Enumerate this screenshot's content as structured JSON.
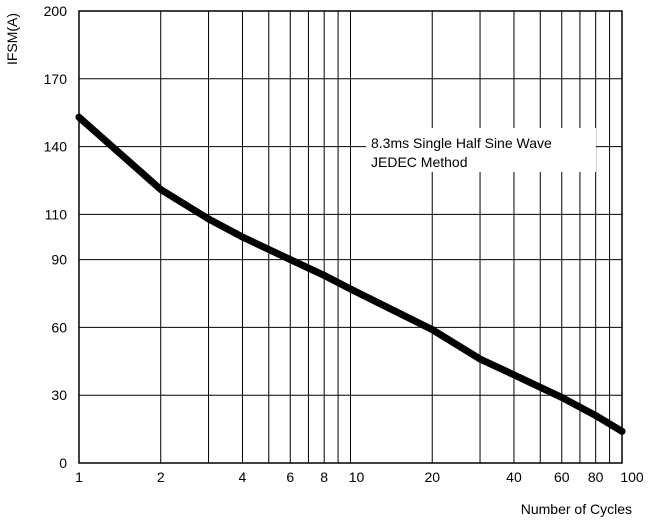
{
  "chart_data": {
    "type": "line",
    "xscale": "log",
    "ylabel": "IFSM(A)",
    "xlabel": "Number of Cycles",
    "xlim": [
      1,
      100
    ],
    "ylim": [
      0,
      200
    ],
    "x_ticks": [
      1,
      2,
      4,
      6,
      8,
      10,
      20,
      40,
      60,
      80,
      100
    ],
    "x_minor_ticks": [
      3,
      5,
      7,
      9,
      30,
      50,
      70,
      90
    ],
    "y_ticks": [
      0,
      30,
      60,
      90,
      110,
      140,
      170,
      200
    ],
    "grid": true,
    "annotation": [
      "8.3ms Single Half Sine Wave",
      "JEDEC Method"
    ],
    "series": [
      {
        "x": [
          1,
          2,
          3,
          4,
          6,
          8,
          10,
          20,
          30,
          40,
          60,
          80,
          100
        ],
        "y": [
          153,
          121,
          108,
          100,
          90,
          83,
          77,
          59,
          46,
          39,
          29,
          21,
          14
        ]
      }
    ]
  }
}
